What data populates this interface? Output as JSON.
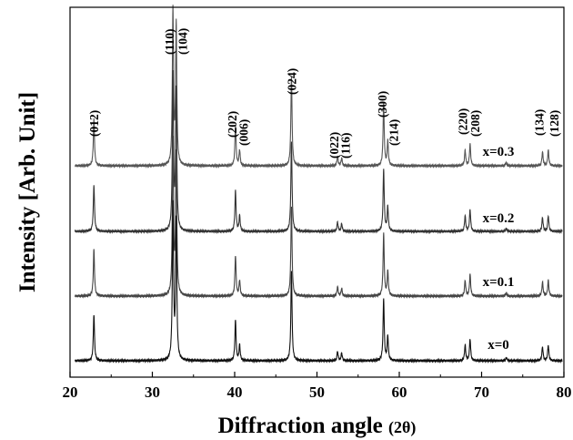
{
  "chart_data": {
    "type": "line",
    "xlabel": "Diffraction angle (2θ)",
    "xlabel_main": "Diffraction angle ",
    "xlabel_sub": "(2θ)",
    "ylabel": "Intensity [Arb. Unit]",
    "xlim": [
      20,
      80
    ],
    "x_ticks": [
      "20",
      "30",
      "40",
      "50",
      "60",
      "70",
      "80"
    ],
    "y_ticks": "none",
    "grid": false,
    "peak_labels": [
      {
        "label": "(012)",
        "x": 22.9
      },
      {
        "label": "(110)",
        "x": 32.5
      },
      {
        "label": "(104)",
        "x": 33.0
      },
      {
        "label": "(202)",
        "x": 40.0
      },
      {
        "label": "(006)",
        "x": 40.6
      },
      {
        "label": "(024)",
        "x": 46.9
      },
      {
        "label": "(022)",
        "x": 52.5
      },
      {
        "label": "(116)",
        "x": 53.0
      },
      {
        "label": "(300)",
        "x": 58.1
      },
      {
        "label": "(214)",
        "x": 58.6
      },
      {
        "label": "(220)",
        "x": 68.0
      },
      {
        "label": "(208)",
        "x": 68.6
      },
      {
        "label": "(134)",
        "x": 77.4
      },
      {
        "label": "(128)",
        "x": 78.1
      }
    ],
    "peaks": [
      {
        "x": 22.9,
        "h": 0.3
      },
      {
        "x": 32.5,
        "h": 1.0
      },
      {
        "x": 32.9,
        "h": 0.9
      },
      {
        "x": 40.1,
        "h": 0.26
      },
      {
        "x": 40.6,
        "h": 0.1
      },
      {
        "x": 46.9,
        "h": 0.58
      },
      {
        "x": 52.5,
        "h": 0.06
      },
      {
        "x": 53.0,
        "h": 0.05
      },
      {
        "x": 58.1,
        "h": 0.4
      },
      {
        "x": 58.6,
        "h": 0.16
      },
      {
        "x": 68.0,
        "h": 0.1
      },
      {
        "x": 68.6,
        "h": 0.14
      },
      {
        "x": 73.0,
        "h": 0.02
      },
      {
        "x": 77.4,
        "h": 0.09
      },
      {
        "x": 78.1,
        "h": 0.1
      }
    ],
    "series": [
      {
        "name": "x=0.3",
        "color": "#555555"
      },
      {
        "name": "x=0.2",
        "color": "#333333"
      },
      {
        "name": "x=0.1",
        "color": "#444444"
      },
      {
        "name": "x=0",
        "color": "#111111"
      }
    ]
  }
}
